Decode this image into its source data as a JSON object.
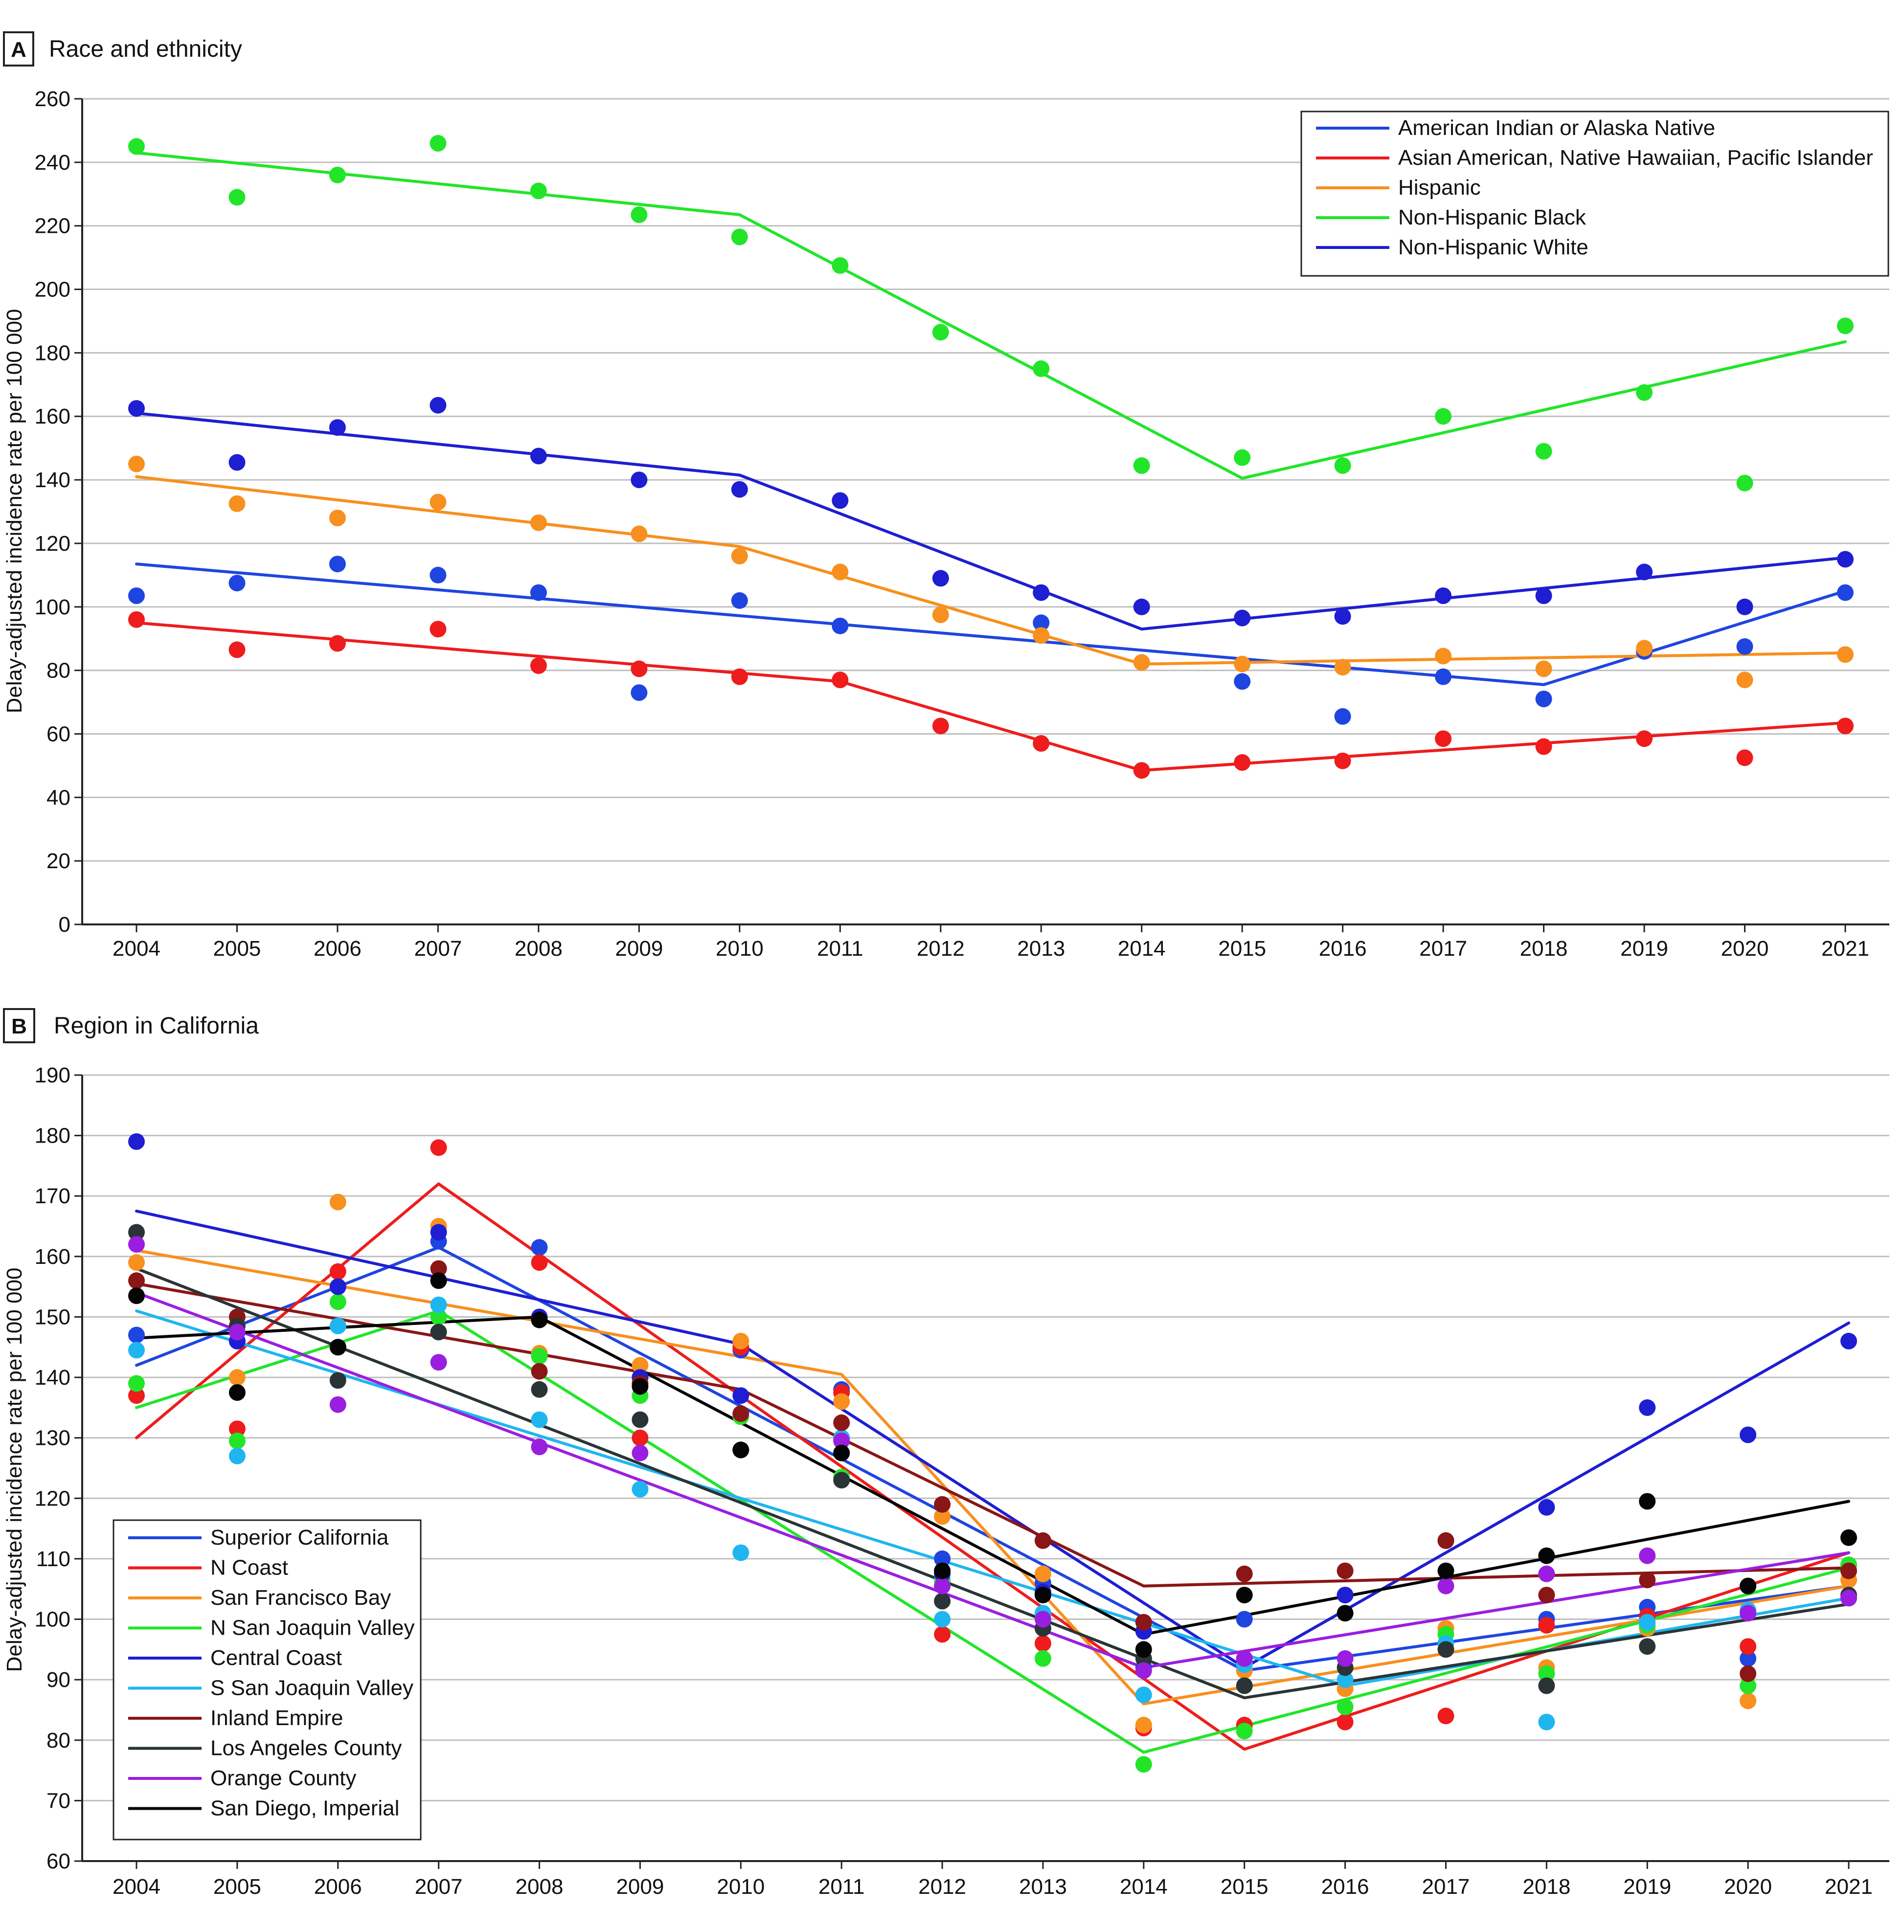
{
  "colors": {
    "American Indian or Alaska Native": "#1f45e0",
    "Asian American, Native Hawaiian, Pacific Islander": "#ee1c1c",
    "Hispanic": "#f7901e",
    "Non-Hispanic Black": "#22e52a",
    "Non-Hispanic White": "#1e1ed2",
    "Superior California": "#1f45e0",
    "N Coast": "#ee1c1c",
    "San Francisco Bay": "#f7901e",
    "N San Joaquin Valley": "#22e52a",
    "Central Coast": "#1e1ed2",
    "S San Joaquin Valley": "#1fb6f0",
    "Inland Empire": "#8a1616",
    "Los Angeles County": "#2a3436",
    "Orange County": "#9a1ee0",
    "San Diego, Imperial": "#050505",
    "grid": "#bfbfbf",
    "axis": "#222222"
  },
  "chart_data": [
    {
      "type": "line",
      "panel_letter": "A",
      "title": "Race and ethnicity",
      "xlabel": "",
      "ylabel": "Delay-adjusted incidence rate per 100 000",
      "ylim": [
        0,
        260
      ],
      "yticks": [
        0,
        20,
        40,
        60,
        80,
        100,
        120,
        140,
        160,
        180,
        200,
        220,
        240,
        260
      ],
      "grid": true,
      "legend_position": "top-right",
      "x": [
        2004,
        2005,
        2006,
        2007,
        2008,
        2009,
        2010,
        2011,
        2012,
        2013,
        2014,
        2015,
        2016,
        2017,
        2018,
        2019,
        2020,
        2021
      ],
      "series": [
        {
          "name": "American Indian or Alaska Native",
          "points": [
            103.5,
            107.5,
            113.5,
            110,
            104.5,
            73,
            102,
            94,
            null,
            95,
            null,
            76.5,
            65.5,
            78,
            71,
            86,
            87.5,
            104.5
          ],
          "trend": [
            [
              2004,
              113.5
            ],
            [
              2018,
              75.5
            ],
            [
              2021,
              105
            ]
          ]
        },
        {
          "name": "Asian American, Native Hawaiian, Pacific Islander",
          "points": [
            96,
            86.5,
            88.5,
            93,
            81.5,
            80.5,
            78,
            77,
            62.5,
            57,
            48.5,
            51,
            51.5,
            58.5,
            56,
            58.5,
            52.5,
            62.5
          ],
          "trend": [
            [
              2004,
              95
            ],
            [
              2011,
              76.5
            ],
            [
              2014,
              48.5
            ],
            [
              2021,
              63.5
            ]
          ]
        },
        {
          "name": "Hispanic",
          "points": [
            145,
            132.5,
            128,
            133,
            126.5,
            123,
            116,
            111,
            97.5,
            91,
            82.5,
            82,
            81,
            84.5,
            80.5,
            87,
            77,
            85
          ],
          "trend": [
            [
              2004,
              141
            ],
            [
              2010,
              119
            ],
            [
              2014,
              82
            ],
            [
              2021,
              85.5
            ]
          ]
        },
        {
          "name": "Non-Hispanic Black",
          "points": [
            245,
            229,
            236,
            246,
            231,
            223.5,
            216.5,
            207.5,
            186.5,
            175,
            144.5,
            147,
            144.5,
            160,
            149,
            167.5,
            139,
            188.5
          ],
          "trend": [
            [
              2004,
              243
            ],
            [
              2010,
              223.5
            ],
            [
              2015,
              140.5
            ],
            [
              2021,
              183.5
            ]
          ]
        },
        {
          "name": "Non-Hispanic White",
          "points": [
            162.5,
            145.5,
            156.5,
            163.5,
            147.5,
            140,
            137,
            133.5,
            109,
            104.5,
            100,
            96.5,
            97,
            103.5,
            103.5,
            111,
            100,
            115
          ],
          "trend": [
            [
              2004,
              161
            ],
            [
              2010,
              141.5
            ],
            [
              2014,
              93
            ],
            [
              2021,
              115.5
            ]
          ]
        }
      ]
    },
    {
      "type": "line",
      "panel_letter": "B",
      "title": "Region in California",
      "xlabel": "",
      "ylabel": "Delay-adjusted incidence rate per 100 000",
      "ylim": [
        60,
        190
      ],
      "yticks": [
        60,
        70,
        80,
        90,
        100,
        110,
        120,
        130,
        140,
        150,
        160,
        170,
        180,
        190
      ],
      "grid": true,
      "legend_position": "bottom-left",
      "x": [
        2004,
        2005,
        2006,
        2007,
        2008,
        2009,
        2010,
        2011,
        2012,
        2013,
        2014,
        2015,
        2016,
        2017,
        2018,
        2019,
        2020,
        2021
      ],
      "series": [
        {
          "name": "Superior California",
          "points": [
            147,
            146,
            155,
            162.5,
            161.5,
            140,
            144.5,
            138,
            110,
            106,
            92,
            100,
            104,
            113,
            100,
            102,
            93.5,
            103.5
          ],
          "trend": [
            [
              2004,
              142
            ],
            [
              2007,
              161.5
            ],
            [
              2015,
              91.5
            ],
            [
              2021,
              105.5
            ]
          ]
        },
        {
          "name": "N Coast",
          "points": [
            137,
            131.5,
            157.5,
            178,
            159,
            130,
            145,
            137.5,
            97.5,
            96,
            82,
            82.5,
            83,
            84,
            99,
            100.5,
            95.5,
            109
          ],
          "trend": [
            [
              2004,
              130
            ],
            [
              2007,
              172
            ],
            [
              2015,
              78.5
            ],
            [
              2021,
              111
            ]
          ]
        },
        {
          "name": "San Francisco Bay",
          "points": [
            159,
            140,
            169,
            165,
            144,
            142,
            146,
            136,
            117,
            107.5,
            82.5,
            91.5,
            88.5,
            98.5,
            92,
            98.5,
            86.5,
            106.5
          ],
          "trend": [
            [
              2004,
              161
            ],
            [
              2011,
              140.5
            ],
            [
              2014,
              86
            ],
            [
              2021,
              105.5
            ]
          ]
        },
        {
          "name": "N San Joaquin Valley",
          "points": [
            139,
            129.5,
            152.5,
            150,
            143.5,
            137,
            133.5,
            123.5,
            106.5,
            93.5,
            76,
            81.5,
            85.5,
            97.5,
            91,
            99,
            89,
            109
          ],
          "trend": [
            [
              2004,
              135
            ],
            [
              2007,
              151
            ],
            [
              2014,
              78
            ],
            [
              2021,
              108.5
            ]
          ]
        },
        {
          "name": "Central Coast",
          "points": [
            179,
            146,
            155,
            164,
            150,
            140,
            137,
            130,
            107.5,
            104.5,
            98,
            93.5,
            104,
            113,
            118.5,
            135,
            130.5,
            146
          ],
          "trend": [
            [
              2004,
              167.5
            ],
            [
              2010,
              145.5
            ],
            [
              2015,
              92
            ],
            [
              2021,
              149
            ]
          ]
        },
        {
          "name": "S San Joaquin Valley",
          "points": [
            144.5,
            127,
            148.5,
            152,
            133,
            121.5,
            111,
            130,
            100,
            101,
            87.5,
            92.5,
            90,
            96,
            83,
            99.5,
            101.5,
            103.5
          ],
          "trend": [
            [
              2004,
              151
            ],
            [
              2016,
              89
            ],
            [
              2021,
              103.5
            ]
          ]
        },
        {
          "name": "Inland Empire",
          "points": [
            156,
            150,
            145,
            158,
            141,
            139,
            134,
            132.5,
            119,
            113,
            99.5,
            107.5,
            108,
            113,
            104,
            106.5,
            91,
            108
          ],
          "trend": [
            [
              2004,
              155.5
            ],
            [
              2010,
              138
            ],
            [
              2014,
              105.5
            ],
            [
              2021,
              108.5
            ]
          ]
        },
        {
          "name": "Los Angeles County",
          "points": [
            164,
            148.5,
            139.5,
            147.5,
            138,
            133,
            128,
            123,
            103,
            98.5,
            93.5,
            89,
            92,
            95,
            89,
            95.5,
            105.5,
            104
          ],
          "trend": [
            [
              2004,
              158
            ],
            [
              2015,
              87
            ],
            [
              2021,
              102.5
            ]
          ]
        },
        {
          "name": "Orange County",
          "points": [
            162,
            147.5,
            135.5,
            142.5,
            128.5,
            127.5,
            128,
            129.5,
            105.5,
            100,
            91.5,
            93.5,
            93.5,
            105.5,
            107.5,
            110.5,
            101,
            103.5
          ],
          "trend": [
            [
              2004,
              154
            ],
            [
              2014,
              92
            ],
            [
              2021,
              111
            ]
          ]
        },
        {
          "name": "San Diego, Imperial",
          "points": [
            153.5,
            137.5,
            145,
            156,
            149.5,
            138.5,
            128,
            127.5,
            108,
            104,
            95,
            104,
            101,
            108,
            110.5,
            119.5,
            105.5,
            113.5
          ],
          "trend": [
            [
              2004,
              146.5
            ],
            [
              2008,
              150
            ],
            [
              2014,
              97.5
            ],
            [
              2021,
              119.5
            ]
          ]
        }
      ]
    }
  ]
}
